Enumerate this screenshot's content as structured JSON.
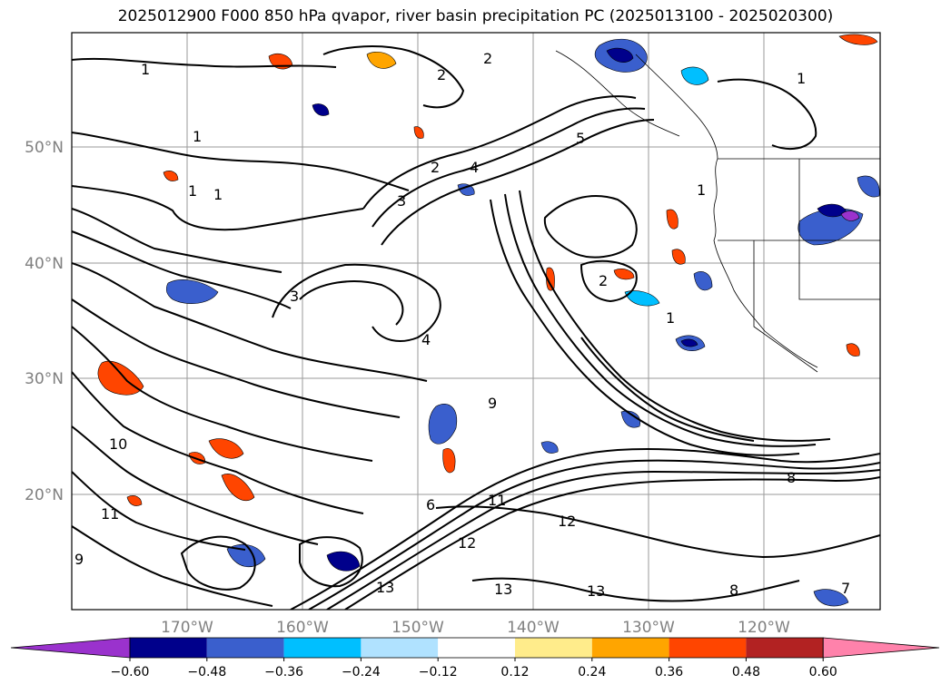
{
  "title": "2025012900 F000 850 hPa qvapor, river basin precipitation PC (2025013100 - 2025020300)",
  "map": {
    "lat_labels": [
      "50°N",
      "40°N",
      "30°N",
      "20°N"
    ],
    "lon_labels": [
      "170°W",
      "160°W",
      "150°W",
      "140°W",
      "130°W",
      "120°W"
    ],
    "contour_labels": [
      "1",
      "1",
      "1",
      "1",
      "1",
      "1",
      "1",
      "2",
      "2",
      "2",
      "2",
      "3",
      "3",
      "4",
      "4",
      "5",
      "6",
      "8",
      "9",
      "10",
      "11",
      "11",
      "12",
      "12",
      "13",
      "13",
      "13",
      "7",
      "8",
      "9"
    ]
  },
  "colorbar": {
    "ticks": [
      "−0.60",
      "−0.48",
      "−0.36",
      "−0.24",
      "−0.12",
      "0.12",
      "0.24",
      "0.36",
      "0.48",
      "0.60"
    ],
    "colors": [
      "#9a32cd",
      "#00008b",
      "#3a5fcd",
      "#00bfff",
      "#b0e2ff",
      "#ffffff",
      "#ffec8b",
      "#ffa500",
      "#ff4500",
      "#b22222",
      "#ff82ab"
    ]
  },
  "colors": {
    "positive_strong": "#ff4500",
    "positive_mid": "#ffa500",
    "positive_weak": "#ffec8b",
    "negative_strong": "#00008b",
    "negative_mid": "#3a5fcd",
    "negative_weak": "#00bfff",
    "negative_faint": "#b0e2ff"
  }
}
